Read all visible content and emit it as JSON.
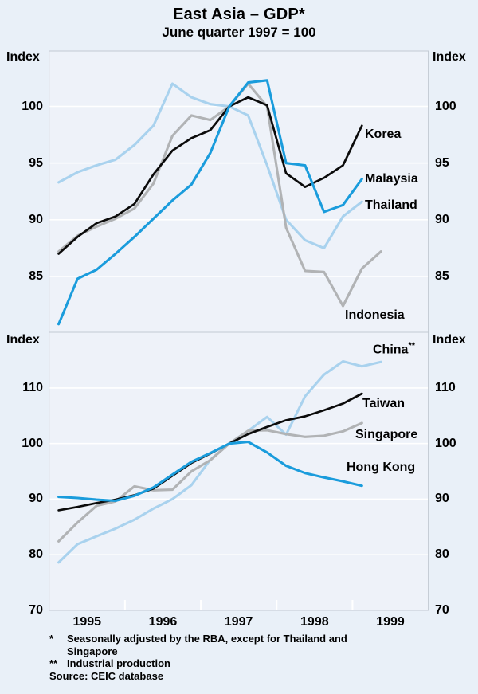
{
  "header": {
    "title": "East Asia – GDP*",
    "subtitle": "June quarter 1997 = 100"
  },
  "axis": {
    "index_label": "Index",
    "years": [
      "1995",
      "1996",
      "1997",
      "1998",
      "1999"
    ]
  },
  "footnotes": {
    "note1_marker": "*",
    "note1_line1": "Seasonally adjusted by the RBA, except for Thailand and",
    "note1_line2": "Singapore",
    "note2_marker": "**",
    "note2_text": "Industrial production",
    "source": "Source: CEIC database"
  },
  "colors": {
    "black_line": "#0b0b0b",
    "blue_line": "#1a9cdc",
    "light_blue_line": "#a9d2ee",
    "gray_line": "#b1b3b5",
    "background": "#e9f0f8",
    "plot_background": "#eef2f9",
    "gridline": "#ffffff",
    "frame": "#c2c9d2"
  },
  "chart_data": {
    "type": "line",
    "title": "East Asia – GDP*",
    "subtitle": "June quarter 1997 = 100",
    "x_quarters": [
      "1995Q1",
      "1995Q2",
      "1995Q3",
      "1995Q4",
      "1996Q1",
      "1996Q2",
      "1996Q3",
      "1996Q4",
      "1997Q1",
      "1997Q2",
      "1997Q3",
      "1997Q4",
      "1998Q1",
      "1998Q2",
      "1998Q3",
      "1998Q4",
      "1999Q1",
      "1999Q2"
    ],
    "x_first_point": 1995.125,
    "x_step": 0.25,
    "xlim": [
      1995,
      2000
    ],
    "grid": true,
    "legend_position": "inline-right",
    "panels": [
      {
        "name": "gdp",
        "ylim": [
          80.1,
          104.9
        ],
        "gridlines": [
          85,
          90,
          95,
          100
        ],
        "tick_labels": [
          "100",
          "95",
          "90",
          "85"
        ],
        "series": [
          {
            "label": "Thailand",
            "color_key": "light_blue_line",
            "values": [
              93.3,
              94.2,
              94.8,
              95.3,
              96.6,
              98.3,
              102.0,
              100.8,
              100.2,
              100.0,
              99.2,
              94.8,
              90.0,
              88.2,
              87.5,
              90.3,
              91.6
            ]
          },
          {
            "label": "Indonesia",
            "color_key": "gray_line",
            "values": [
              87.2,
              88.6,
              89.4,
              90.1,
              91.0,
              93.2,
              97.4,
              99.2,
              98.8,
              100.0,
              102.0,
              100.0,
              89.3,
              85.5,
              85.4,
              82.4,
              85.7,
              87.2
            ]
          },
          {
            "label": "Korea",
            "color_key": "black_line",
            "values": [
              87.0,
              88.5,
              89.7,
              90.3,
              91.4,
              94.0,
              96.1,
              97.2,
              97.9,
              100.0,
              100.8,
              100.1,
              94.1,
              92.9,
              93.7,
              94.8,
              98.3
            ]
          },
          {
            "label": "Malaysia",
            "color_key": "blue_line",
            "values": [
              80.8,
              84.8,
              85.6,
              87.0,
              88.5,
              90.1,
              91.7,
              93.1,
              95.9,
              100.0,
              102.1,
              102.3,
              95.0,
              94.8,
              90.7,
              91.3,
              93.6
            ]
          }
        ]
      },
      {
        "name": "industrial-production",
        "ylim": [
          70,
          120.1
        ],
        "gridlines": [
          80,
          90,
          100,
          110
        ],
        "tick_labels": [
          "110",
          "100",
          "90",
          "80",
          "70"
        ],
        "series": [
          {
            "label": "China",
            "label_suffix": "**",
            "color_key": "light_blue_line",
            "values": [
              78.6,
              81.9,
              83.3,
              84.7,
              86.3,
              88.3,
              90.0,
              92.5,
              97.1,
              100.0,
              102.3,
              104.8,
              101.6,
              108.5,
              112.4,
              114.8,
              113.9,
              114.7
            ]
          },
          {
            "label": "Singapore",
            "color_key": "gray_line",
            "values": [
              82.4,
              85.8,
              88.8,
              89.6,
              92.3,
              91.6,
              91.7,
              95.0,
              97.0,
              100.0,
              102.3,
              102.4,
              101.7,
              101.2,
              101.4,
              102.2,
              103.7
            ]
          },
          {
            "label": "Taiwan",
            "color_key": "black_line",
            "values": [
              88.0,
              88.6,
              89.3,
              89.9,
              90.7,
              91.9,
              94.2,
              96.5,
              98.2,
              100.0,
              101.7,
              103.0,
              104.2,
              104.9,
              106.0,
              107.2,
              109.0
            ]
          },
          {
            "label": "Hong Kong",
            "color_key": "blue_line",
            "values": [
              90.4,
              90.2,
              89.9,
              89.7,
              90.6,
              92.1,
              94.4,
              96.7,
              98.3,
              100.0,
              100.3,
              98.4,
              96.0,
              94.7,
              93.9,
              93.2,
              92.4
            ]
          }
        ]
      }
    ]
  }
}
